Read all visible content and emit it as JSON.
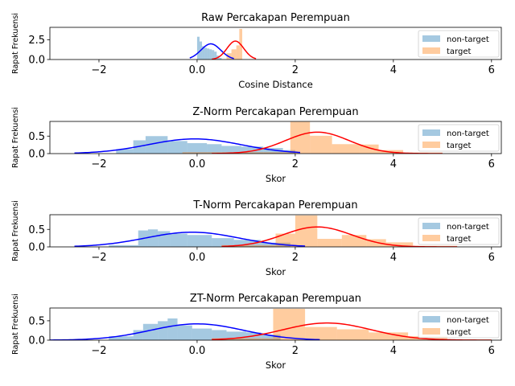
{
  "chart_data": [
    {
      "type": "histogram",
      "title": "Raw Percakapan Perempuan",
      "xlabel": "Cosine Distance",
      "ylabel": "Rapat Frekuensi",
      "xlim": [
        -3,
        6.2
      ],
      "ylim": [
        0,
        4.1
      ],
      "xticks": [
        -2,
        0,
        2,
        4,
        6
      ],
      "yticks": [
        0,
        2.5
      ],
      "legend": {
        "position": "top-right",
        "entries": [
          "non-target",
          "target"
        ]
      },
      "series": [
        {
          "name": "non-target",
          "color": "#1f77b4",
          "kind": "bars",
          "bins": [
            [
              0.0,
              0.05,
              2.9
            ],
            [
              0.05,
              0.1,
              2.3
            ],
            [
              0.1,
              0.15,
              1.7
            ],
            [
              0.15,
              0.2,
              1.5
            ],
            [
              0.2,
              0.25,
              1.4
            ],
            [
              0.25,
              0.3,
              1.3
            ],
            [
              0.3,
              0.35,
              1.2
            ],
            [
              0.35,
              0.4,
              1.0
            ],
            [
              0.4,
              0.45,
              0.5
            ],
            [
              0.45,
              0.5,
              0.2
            ]
          ]
        },
        {
          "name": "target",
          "color": "#ff7f0e",
          "kind": "bars",
          "bins": [
            [
              0.6,
              0.7,
              0.8
            ],
            [
              0.7,
              0.8,
              1.3
            ],
            [
              0.8,
              0.86,
              1.8
            ],
            [
              0.86,
              0.92,
              3.9
            ]
          ]
        }
      ],
      "curves": [
        {
          "color": "#0000ff",
          "mean": 0.28,
          "sd": 0.2,
          "x_from": -0.15,
          "x_to": 0.75
        },
        {
          "color": "#ff0000",
          "mean": 0.78,
          "sd": 0.17,
          "x_from": 0.3,
          "x_to": 1.2
        }
      ]
    },
    {
      "type": "histogram",
      "title": "Z-Norm Percakapan Perempuan",
      "xlabel": "Skor",
      "ylabel": "Rapat Frekuensi",
      "xlim": [
        -3,
        6.2
      ],
      "ylim": [
        0,
        0.92
      ],
      "xticks": [
        -2,
        0,
        2,
        4,
        6
      ],
      "yticks": [
        0,
        0.5
      ],
      "legend": {
        "position": "top-right",
        "entries": [
          "non-target",
          "target"
        ]
      },
      "series": [
        {
          "name": "non-target",
          "color": "#1f77b4",
          "kind": "bars",
          "bins": [
            [
              -1.65,
              -1.3,
              0.13
            ],
            [
              -1.3,
              -1.05,
              0.38
            ],
            [
              -1.05,
              -0.6,
              0.5
            ],
            [
              -0.6,
              -0.2,
              0.36
            ],
            [
              -0.2,
              0.2,
              0.3
            ],
            [
              0.2,
              0.5,
              0.27
            ],
            [
              0.5,
              0.9,
              0.22
            ],
            [
              0.9,
              1.35,
              0.2
            ],
            [
              1.35,
              1.75,
              0.16
            ],
            [
              1.75,
              2.0,
              0.1
            ]
          ]
        },
        {
          "name": "target",
          "color": "#ff7f0e",
          "kind": "bars",
          "bins": [
            [
              -0.3,
              1.9,
              0.04
            ],
            [
              1.9,
              2.3,
              0.91
            ],
            [
              2.3,
              2.75,
              0.51
            ],
            [
              2.75,
              3.3,
              0.27
            ],
            [
              3.3,
              3.7,
              0.26
            ],
            [
              3.7,
              4.2,
              0.1
            ],
            [
              4.2,
              5.0,
              0.03
            ]
          ]
        }
      ],
      "curves": [
        {
          "color": "#0000ff",
          "mean": -0.05,
          "sd": 0.95,
          "x_from": -2.5,
          "x_to": 2.1
        },
        {
          "color": "#ff0000",
          "mean": 2.45,
          "sd": 0.65,
          "x_from": 0.3,
          "x_to": 5.0
        }
      ]
    },
    {
      "type": "histogram",
      "title": "T-Norm Percakapan Perempuan",
      "xlabel": "Skor",
      "ylabel": "Rapat Frekuensi",
      "xlim": [
        -3,
        6.2
      ],
      "ylim": [
        0,
        0.92
      ],
      "xticks": [
        -2,
        0,
        2,
        4,
        6
      ],
      "yticks": [
        0,
        0.5
      ],
      "legend": {
        "position": "top-right",
        "entries": [
          "non-target",
          "target"
        ]
      },
      "series": [
        {
          "name": "non-target",
          "color": "#1f77b4",
          "kind": "bars",
          "bins": [
            [
              -1.8,
              -1.2,
              0.05
            ],
            [
              -1.2,
              -1.0,
              0.47
            ],
            [
              -1.0,
              -0.8,
              0.5
            ],
            [
              -0.8,
              -0.55,
              0.45
            ],
            [
              -0.55,
              -0.2,
              0.38
            ],
            [
              -0.2,
              0.3,
              0.34
            ],
            [
              0.3,
              0.75,
              0.25
            ],
            [
              0.75,
              1.3,
              0.2
            ],
            [
              1.3,
              1.9,
              0.12
            ]
          ]
        },
        {
          "name": "target",
          "color": "#ff7f0e",
          "kind": "bars",
          "bins": [
            [
              0.5,
              1.6,
              0.05
            ],
            [
              1.6,
              2.0,
              0.38
            ],
            [
              2.0,
              2.45,
              0.9
            ],
            [
              2.45,
              2.95,
              0.23
            ],
            [
              2.95,
              3.45,
              0.34
            ],
            [
              3.45,
              3.85,
              0.22
            ],
            [
              3.85,
              4.4,
              0.13
            ],
            [
              4.4,
              5.3,
              0.03
            ]
          ]
        }
      ],
      "curves": [
        {
          "color": "#0000ff",
          "mean": -0.1,
          "sd": 0.95,
          "x_from": -2.5,
          "x_to": 2.2
        },
        {
          "color": "#ff0000",
          "mean": 2.45,
          "sd": 0.7,
          "x_from": 0.5,
          "x_to": 5.3
        }
      ]
    },
    {
      "type": "histogram",
      "title": "ZT-Norm Percakapan Perempuan",
      "xlabel": "Skor",
      "ylabel": "Rapat Frekuensi",
      "xlim": [
        -3,
        6.2
      ],
      "ylim": [
        0,
        0.83
      ],
      "xticks": [
        -2,
        0,
        2,
        4,
        6
      ],
      "yticks": [
        0,
        0.5
      ],
      "legend": {
        "position": "top-right",
        "entries": [
          "non-target",
          "target"
        ]
      },
      "series": [
        {
          "name": "non-target",
          "color": "#1f77b4",
          "kind": "bars",
          "bins": [
            [
              -1.8,
              -1.3,
              0.1
            ],
            [
              -1.3,
              -1.1,
              0.26
            ],
            [
              -1.1,
              -0.8,
              0.42
            ],
            [
              -0.8,
              -0.6,
              0.49
            ],
            [
              -0.6,
              -0.4,
              0.56
            ],
            [
              -0.4,
              -0.1,
              0.38
            ],
            [
              -0.1,
              0.3,
              0.3
            ],
            [
              0.3,
              0.6,
              0.26
            ],
            [
              0.6,
              1.0,
              0.22
            ],
            [
              1.0,
              1.3,
              0.2
            ],
            [
              1.3,
              1.7,
              0.14
            ]
          ]
        },
        {
          "name": "target",
          "color": "#ff7f0e",
          "kind": "bars",
          "bins": [
            [
              0.3,
              1.55,
              0.05
            ],
            [
              1.55,
              2.2,
              0.81
            ],
            [
              2.2,
              2.85,
              0.34
            ],
            [
              2.85,
              3.5,
              0.28
            ],
            [
              3.5,
              4.3,
              0.2
            ],
            [
              4.3,
              5.1,
              0.1
            ],
            [
              5.1,
              6.0,
              0.02
            ]
          ]
        }
      ],
      "curves": [
        {
          "color": "#0000ff",
          "mean": 0.0,
          "sd": 0.95,
          "x_from": -3.0,
          "x_to": 2.5
        },
        {
          "color": "#ff0000",
          "mean": 2.65,
          "sd": 0.9,
          "x_from": 0.3,
          "x_to": 6.0
        }
      ]
    }
  ]
}
